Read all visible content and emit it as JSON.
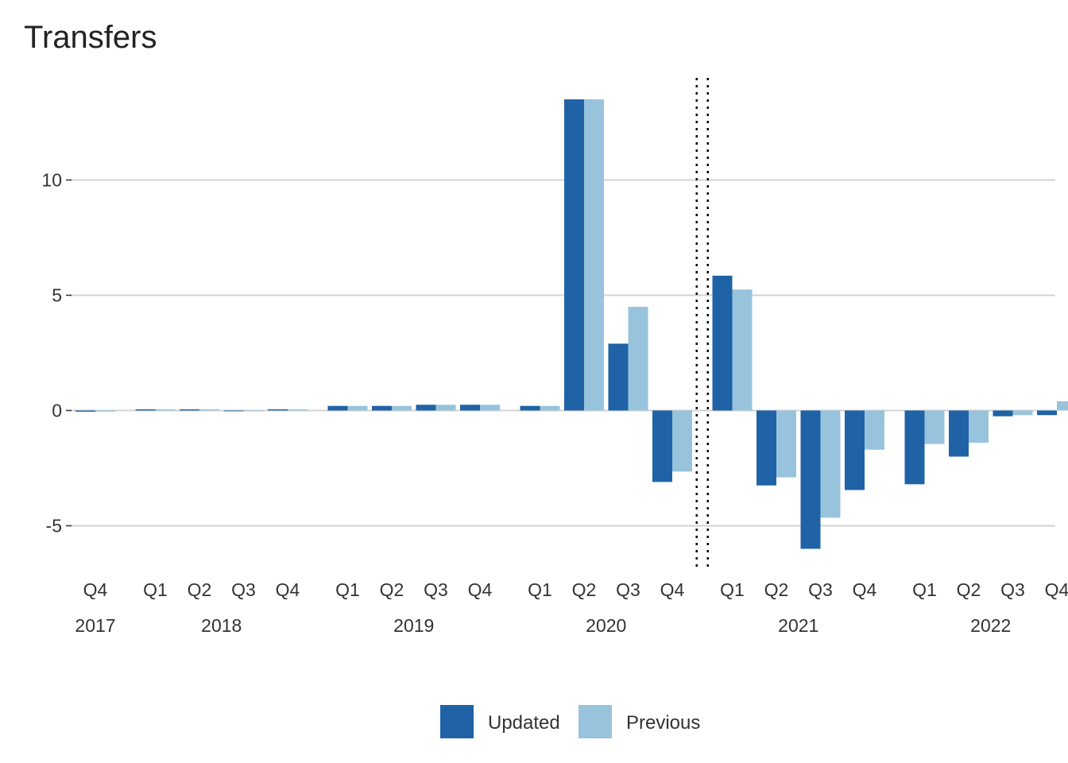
{
  "chart_data": {
    "type": "bar",
    "title": "Transfers",
    "xlabel": "",
    "ylabel": "",
    "ylim": [
      -6.5,
      14.5
    ],
    "yticks": [
      -5,
      0,
      5,
      10
    ],
    "ytick_labels": [
      "-5",
      "0",
      "5",
      "10"
    ],
    "grid": true,
    "legend_position": "bottom",
    "categories": [
      {
        "quarter": "Q4",
        "year": "2017"
      },
      {
        "quarter": "Q1",
        "year": "2018"
      },
      {
        "quarter": "Q2",
        "year": "2018"
      },
      {
        "quarter": "Q3",
        "year": "2018"
      },
      {
        "quarter": "Q4",
        "year": "2018"
      },
      {
        "quarter": "Q1",
        "year": "2019"
      },
      {
        "quarter": "Q2",
        "year": "2019"
      },
      {
        "quarter": "Q3",
        "year": "2019"
      },
      {
        "quarter": "Q4",
        "year": "2019"
      },
      {
        "quarter": "Q1",
        "year": "2020"
      },
      {
        "quarter": "Q2",
        "year": "2020"
      },
      {
        "quarter": "Q3",
        "year": "2020"
      },
      {
        "quarter": "Q4",
        "year": "2020"
      },
      {
        "quarter": "Q1",
        "year": "2021"
      },
      {
        "quarter": "Q2",
        "year": "2021"
      },
      {
        "quarter": "Q3",
        "year": "2021"
      },
      {
        "quarter": "Q4",
        "year": "2021"
      },
      {
        "quarter": "Q1",
        "year": "2022"
      },
      {
        "quarter": "Q2",
        "year": "2022"
      },
      {
        "quarter": "Q3",
        "year": "2022"
      },
      {
        "quarter": "Q4",
        "year": "2022"
      }
    ],
    "year_labels": [
      "2017",
      "2018",
      "2019",
      "2020",
      "2021",
      "2022"
    ],
    "series": [
      {
        "name": "Updated",
        "color": "#1f63a6",
        "values": [
          -0.05,
          0.05,
          0.05,
          -0.03,
          0.05,
          0.2,
          0.2,
          0.25,
          0.25,
          0.2,
          13.5,
          2.9,
          -3.1,
          5.85,
          -3.25,
          -6.0,
          -3.45,
          -3.2,
          -2.0,
          -0.25,
          -0.2
        ]
      },
      {
        "name": "Previous",
        "color": "#98c3dd",
        "values": [
          -0.05,
          0.05,
          0.05,
          -0.03,
          0.05,
          0.2,
          0.2,
          0.25,
          0.25,
          0.2,
          13.5,
          4.5,
          -2.65,
          5.25,
          -2.9,
          -4.65,
          -1.7,
          -1.45,
          -1.4,
          -0.2,
          0.4
        ]
      }
    ],
    "reference_line": {
      "style": "dotted",
      "color": "#000000",
      "between": [
        "Q4 2020",
        "Q1 2021"
      ]
    }
  }
}
